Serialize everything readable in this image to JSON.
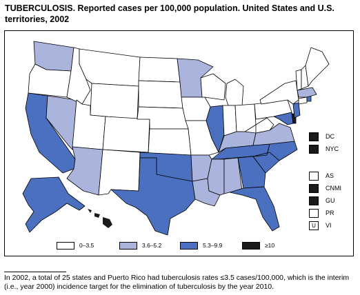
{
  "title_bold": "TUBERCULOSIS. Reported cases per 100,000 population. United States and U.S. territories, 2002",
  "colors": {
    "b1": "#ffffff",
    "b2": "#aab4dc",
    "b3": "#4a70bf",
    "b4": "#1a1a1a"
  },
  "legend": [
    {
      "label": "0–3.5",
      "bin": "b1"
    },
    {
      "label": "3.6–5.2",
      "bin": "b2"
    },
    {
      "label": "5.3–9.9",
      "bin": "b3"
    },
    {
      "label": "≥10",
      "bin": "b4"
    }
  ],
  "territories": [
    {
      "label": "DC",
      "bin": "b4"
    },
    {
      "label": "NYC",
      "bin": "b4"
    },
    {
      "label": "AS",
      "bin": "b1"
    },
    {
      "label": "CNMI",
      "bin": "b4"
    },
    {
      "label": "GU",
      "bin": "b4"
    },
    {
      "label": "PR",
      "bin": "b1"
    },
    {
      "label": "VI",
      "bin": "b1",
      "mark": "U"
    }
  ],
  "footnote": "In 2002, a total of 25 states and Puerto Rico had tuberculosis rates ≤3.5 cases/100,000, which is the interim (i.e., year 2000) incidence target for the elimination of tuberculosis by the year 2010."
}
